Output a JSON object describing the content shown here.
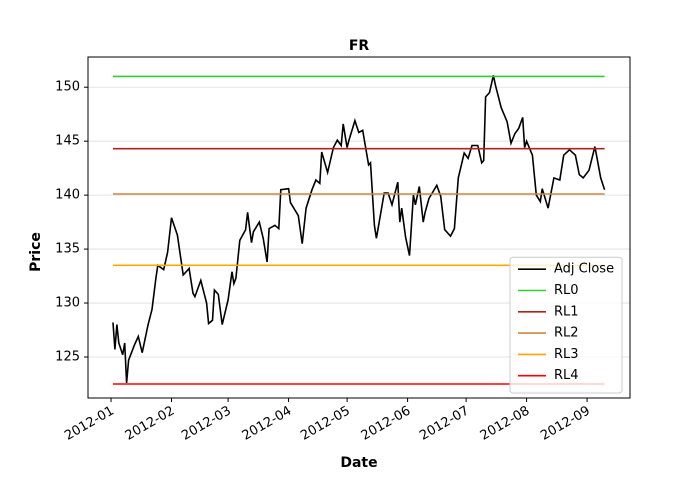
{
  "chart_data": {
    "type": "line",
    "title": "FR",
    "x_label": "Date",
    "y_label": "Price",
    "xlim": [
      -11.8,
      266
    ],
    "ylim": [
      121.2,
      152.8
    ],
    "xticks": [
      {
        "value": 0,
        "label": "2012-01"
      },
      {
        "value": 31,
        "label": "2012-02"
      },
      {
        "value": 60,
        "label": "2012-03"
      },
      {
        "value": 91,
        "label": "2012-04"
      },
      {
        "value": 121,
        "label": "2012-05"
      },
      {
        "value": 152,
        "label": "2012-06"
      },
      {
        "value": 182,
        "label": "2012-07"
      },
      {
        "value": 213,
        "label": "2012-08"
      },
      {
        "value": 244,
        "label": "2012-09"
      }
    ],
    "yticks": [
      125,
      130,
      135,
      140,
      145,
      150
    ],
    "grid": true,
    "legend": "lower right",
    "series": [
      {
        "name": "Adj Close",
        "color": "#000000",
        "x": [
          1,
          2,
          3,
          4,
          6,
          7,
          8,
          9,
          12,
          14,
          16,
          19,
          21,
          23,
          24,
          27,
          29,
          31,
          34,
          37,
          40,
          42,
          43,
          46,
          49,
          50,
          52,
          53,
          55,
          57,
          60,
          62,
          63,
          64,
          66,
          69,
          70,
          72,
          73,
          76,
          78,
          80,
          81,
          84,
          86,
          87,
          91,
          92,
          96,
          98,
          100,
          103,
          105,
          107,
          108,
          111,
          114,
          116,
          118,
          119,
          121,
          122,
          125,
          127,
          129,
          132,
          133,
          135,
          136,
          140,
          142,
          144,
          147,
          148,
          149,
          151,
          153,
          155,
          156,
          158,
          160,
          161,
          163,
          167,
          169,
          171,
          174,
          176,
          178,
          181,
          183,
          185,
          188,
          190,
          191,
          192,
          194,
          196,
          197,
          200,
          203,
          205,
          207,
          209,
          211,
          212,
          213,
          216,
          218,
          220,
          221,
          224,
          227,
          230,
          232,
          235,
          238,
          240,
          242,
          245,
          248,
          251,
          253
        ],
        "values": [
          128.2,
          125.7,
          128,
          126.3,
          125.2,
          126.3,
          122.6,
          124.7,
          126.1,
          126.9,
          125.4,
          128,
          129.4,
          132.3,
          133.5,
          133.1,
          134.7,
          137.9,
          136.3,
          132.6,
          133.2,
          130.9,
          130.6,
          132.1,
          130,
          128.1,
          128.4,
          131.2,
          130.8,
          128,
          130.3,
          132.9,
          131.8,
          132.3,
          135.8,
          136.8,
          138.4,
          135.6,
          136.6,
          137.5,
          136,
          133.8,
          136.9,
          137.2,
          136.9,
          140.5,
          140.6,
          139.3,
          138.1,
          135.5,
          138.8,
          140.5,
          141.4,
          141.1,
          144,
          142.1,
          144.4,
          145.1,
          144.6,
          146.6,
          144.4,
          145.1,
          146.9,
          145.8,
          146,
          142.8,
          143,
          137.2,
          136,
          140.2,
          140.2,
          139.1,
          141.2,
          137.5,
          138.8,
          136.1,
          134.4,
          140,
          139.1,
          140.8,
          137.5,
          138.4,
          139.7,
          140.9,
          139.9,
          136.8,
          136.2,
          136.9,
          141.6,
          143.9,
          143.4,
          144.6,
          144.6,
          143,
          143.2,
          149.1,
          149.5,
          151.1,
          150.2,
          148.1,
          146.8,
          144.8,
          145.7,
          146.2,
          147.2,
          144.4,
          145,
          143.7,
          140,
          139.4,
          140.6,
          138.8,
          141.6,
          141.4,
          143.7,
          144.2,
          143.7,
          141.9,
          141.6,
          142.3,
          144.5,
          141.6,
          140.5
        ]
      },
      {
        "name": "RL0",
        "color": "#32cd32",
        "x": [
          1,
          253
        ],
        "values": [
          151,
          151
        ]
      },
      {
        "name": "RL1",
        "color": "#b22222",
        "x": [
          1,
          253
        ],
        "values": [
          144.3,
          144.3
        ]
      },
      {
        "name": "RL2",
        "color": "#cd853f",
        "x": [
          1,
          253
        ],
        "values": [
          140.1,
          140.1
        ]
      },
      {
        "name": "RL3",
        "color": "#ffa500",
        "x": [
          1,
          253
        ],
        "values": [
          133.5,
          133.5
        ]
      },
      {
        "name": "RL4",
        "color": "#ff0000",
        "x": [
          1,
          253
        ],
        "values": [
          122.5,
          122.5
        ]
      }
    ]
  }
}
